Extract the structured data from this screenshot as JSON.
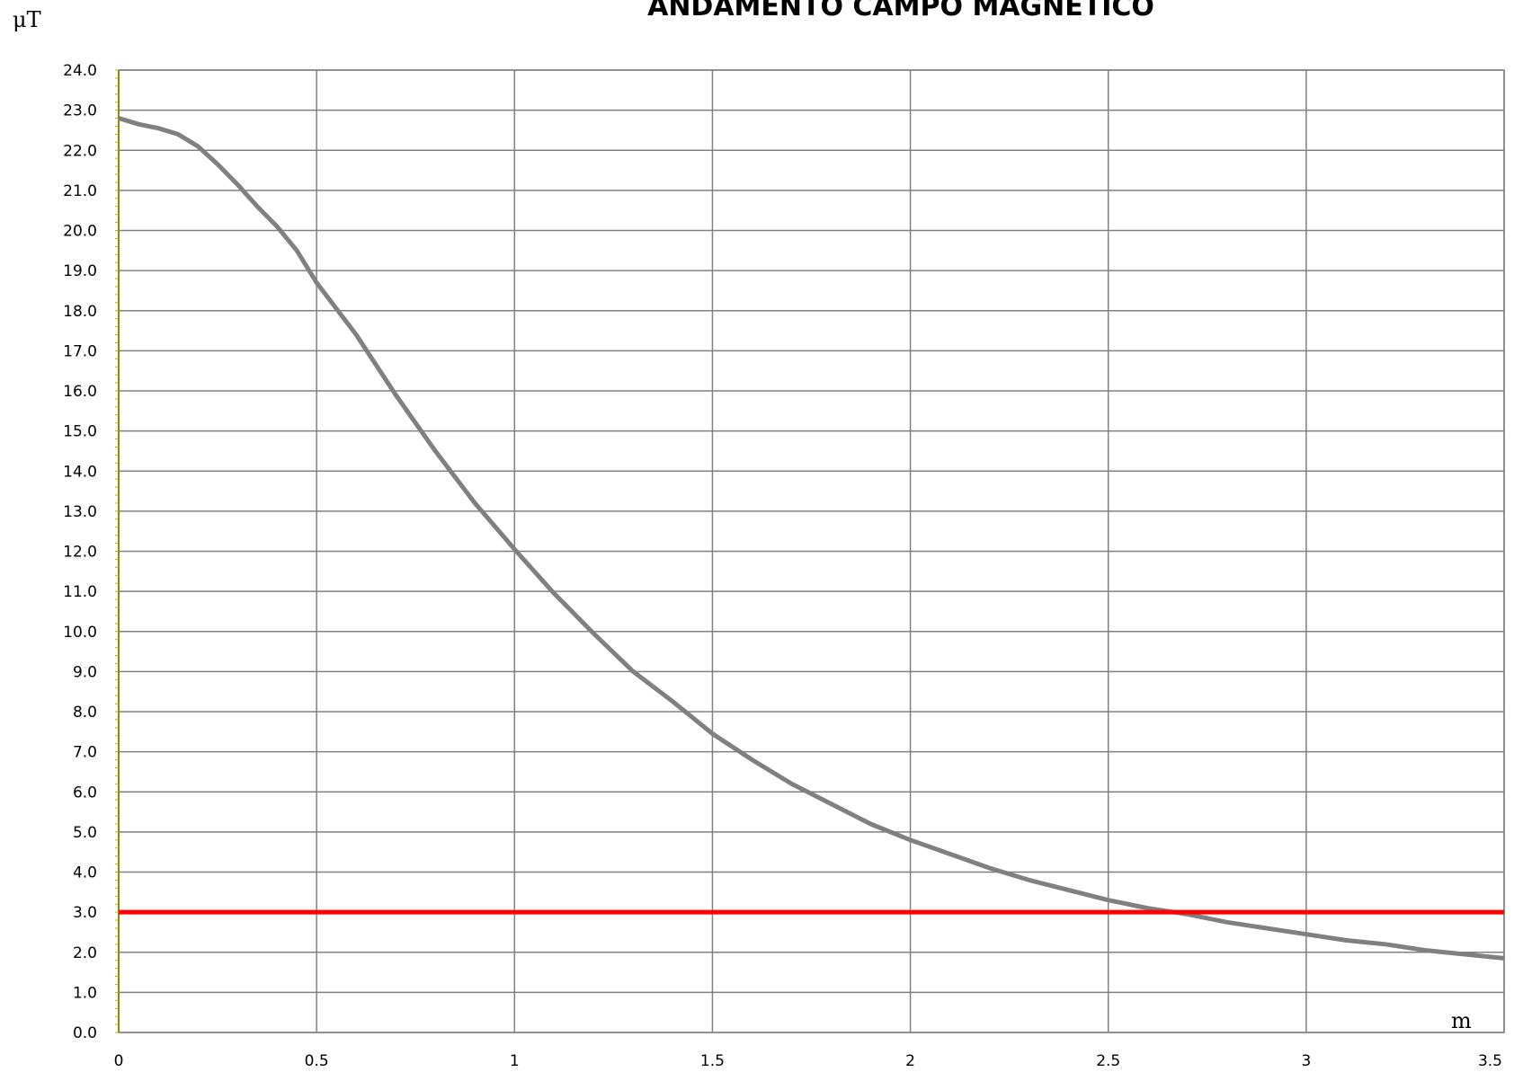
{
  "chart_data": {
    "type": "line",
    "title": "ANDAMENTO CAMPO MAGNETICO",
    "ylabel": "μT",
    "xlabel": "m",
    "xlim": [
      0,
      3.5
    ],
    "ylim": [
      0,
      24
    ],
    "grid": true,
    "x_ticks": [
      "0",
      "0.5",
      "1",
      "1.5",
      "2",
      "2.5",
      "3",
      "3.5"
    ],
    "y_ticks": [
      "0.0",
      "1.0",
      "2.0",
      "3.0",
      "4.0",
      "5.0",
      "6.0",
      "7.0",
      "8.0",
      "9.0",
      "10.0",
      "11.0",
      "12.0",
      "13.0",
      "14.0",
      "15.0",
      "16.0",
      "17.0",
      "18.0",
      "19.0",
      "20.0",
      "21.0",
      "22.0",
      "23.0",
      "24.0"
    ],
    "series": [
      {
        "color": "#808080",
        "x": [
          0,
          0.05,
          0.1,
          0.15,
          0.2,
          0.25,
          0.3,
          0.35,
          0.4,
          0.45,
          0.5,
          0.6,
          0.7,
          0.8,
          0.9,
          1.0,
          1.1,
          1.2,
          1.3,
          1.4,
          1.5,
          1.6,
          1.7,
          1.8,
          1.9,
          2.0,
          2.1,
          2.2,
          2.3,
          2.4,
          2.5,
          2.6,
          2.7,
          2.8,
          2.9,
          3.0,
          3.1,
          3.2,
          3.3,
          3.4,
          3.5
        ],
        "values": [
          22.8,
          22.65,
          22.55,
          22.4,
          22.1,
          21.65,
          21.15,
          20.6,
          20.1,
          19.5,
          18.7,
          17.4,
          15.9,
          14.5,
          13.2,
          12.05,
          10.95,
          9.95,
          9.0,
          8.25,
          7.45,
          6.8,
          6.2,
          5.7,
          5.2,
          4.8,
          4.45,
          4.1,
          3.8,
          3.55,
          3.3,
          3.1,
          2.95,
          2.75,
          2.6,
          2.45,
          2.3,
          2.2,
          2.05,
          1.95,
          1.85
        ]
      },
      {
        "color": "#ff0000",
        "x": [
          0,
          3.5
        ],
        "values": [
          3.0,
          3.0
        ]
      }
    ]
  }
}
